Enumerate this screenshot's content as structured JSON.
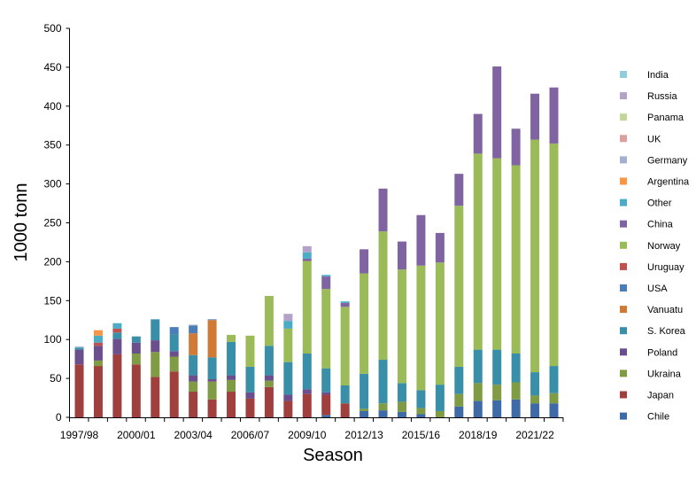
{
  "chart_data": {
    "type": "bar",
    "stacked": true,
    "title": "",
    "xlabel": "Season",
    "ylabel": "1000 tonn",
    "ylim": [
      0,
      500
    ],
    "yticks": [
      0,
      50,
      100,
      150,
      200,
      250,
      300,
      350,
      400,
      450,
      500
    ],
    "grid": false,
    "legend_position": "right",
    "categories": [
      "1997/98",
      "1998/99",
      "1999/00",
      "2000/01",
      "2001/02",
      "2002/03",
      "2003/04",
      "2004/05",
      "2005/06",
      "2006/07",
      "2007/08",
      "2008/09",
      "2009/10",
      "2010/11",
      "2011/12",
      "2012/13",
      "2013/14",
      "2014/15",
      "2015/16",
      "2016/17",
      "2017/18",
      "2018/19",
      "2019/20",
      "2020/21",
      "2021/22",
      "2022/23"
    ],
    "xtick_labels": [
      "1997/98",
      "",
      "",
      "2000/01",
      "",
      "",
      "2003/04",
      "",
      "",
      "2006/07",
      "",
      "",
      "2009/10",
      "",
      "",
      "2012/13",
      "",
      "",
      "2015/16",
      "",
      "",
      "2018/19",
      "",
      "",
      "2021/22",
      ""
    ],
    "series": [
      {
        "name": "Chile",
        "color": "#3F6AA8",
        "values": [
          0,
          0,
          0,
          0,
          0,
          0,
          0,
          0,
          0,
          0,
          0,
          0,
          0,
          3,
          0,
          8,
          9,
          7,
          4,
          0,
          14,
          21,
          22,
          23,
          18,
          18
        ]
      },
      {
        "name": "Japan",
        "color": "#A0403E",
        "values": [
          68,
          66,
          81,
          68,
          52,
          59,
          33,
          23,
          33,
          24,
          39,
          21,
          30,
          26,
          18,
          0,
          0,
          0,
          0,
          0,
          0,
          0,
          0,
          0,
          0,
          0
        ]
      },
      {
        "name": "Ukraina",
        "color": "#7F9B44",
        "values": [
          0,
          7,
          0,
          14,
          32,
          19,
          13,
          23,
          15,
          0,
          8,
          0,
          0,
          0,
          0,
          3,
          9,
          13,
          8,
          8,
          16,
          23,
          20,
          22,
          10,
          13
        ]
      },
      {
        "name": "Poland",
        "color": "#6B4F8C",
        "values": [
          19,
          19,
          20,
          14,
          15,
          7,
          8,
          3,
          6,
          8,
          7,
          8,
          6,
          3,
          0,
          0,
          0,
          0,
          0,
          0,
          0,
          0,
          0,
          0,
          0,
          0
        ]
      },
      {
        "name": "S. Korea",
        "color": "#3A8FA8",
        "values": [
          2,
          0,
          8,
          8,
          27,
          22,
          26,
          28,
          43,
          33,
          38,
          42,
          46,
          31,
          23,
          45,
          56,
          24,
          23,
          34,
          35,
          43,
          45,
          37,
          30,
          35
        ]
      },
      {
        "name": "Vanuatu",
        "color": "#D07A35",
        "values": [
          0,
          0,
          0,
          0,
          0,
          0,
          28,
          48,
          0,
          0,
          0,
          0,
          0,
          0,
          0,
          0,
          0,
          0,
          0,
          0,
          0,
          0,
          0,
          0,
          0,
          0
        ]
      },
      {
        "name": "USA",
        "color": "#4B7DB8",
        "values": [
          0,
          0,
          0,
          0,
          0,
          9,
          10,
          1,
          0,
          0,
          0,
          0,
          0,
          0,
          0,
          0,
          0,
          0,
          0,
          0,
          0,
          0,
          0,
          0,
          0,
          0
        ]
      },
      {
        "name": "Uruguay",
        "color": "#C0504D",
        "values": [
          0,
          4,
          5,
          0,
          0,
          0,
          0,
          0,
          0,
          0,
          0,
          0,
          0,
          0,
          0,
          0,
          0,
          0,
          0,
          0,
          0,
          0,
          0,
          0,
          0,
          0
        ]
      },
      {
        "name": "Norway",
        "color": "#9BBB59",
        "values": [
          0,
          0,
          0,
          0,
          0,
          0,
          0,
          0,
          9,
          40,
          64,
          43,
          119,
          102,
          101,
          129,
          165,
          146,
          160,
          157,
          207,
          252,
          246,
          242,
          299,
          286
        ]
      },
      {
        "name": "China",
        "color": "#8064A2",
        "values": [
          0,
          0,
          0,
          0,
          0,
          0,
          0,
          0,
          0,
          0,
          0,
          0,
          3,
          16,
          5,
          31,
          55,
          36,
          65,
          38,
          41,
          51,
          118,
          47,
          59,
          72
        ]
      },
      {
        "name": "Other",
        "color": "#4BACC6",
        "values": [
          1,
          9,
          7,
          0,
          0,
          0,
          0,
          0,
          0,
          0,
          0,
          10,
          8,
          2,
          2,
          0,
          0,
          0,
          0,
          0,
          0,
          0,
          0,
          0,
          0,
          0
        ]
      },
      {
        "name": "Argentina",
        "color": "#F79646",
        "values": [
          0,
          7,
          0,
          0,
          0,
          0,
          0,
          0,
          0,
          0,
          0,
          0,
          0,
          0,
          0,
          0,
          0,
          0,
          0,
          0,
          0,
          0,
          0,
          0,
          0,
          0
        ]
      },
      {
        "name": "Germany",
        "color": "#A5B0D0",
        "values": [
          1,
          0,
          0,
          0,
          0,
          0,
          1,
          0,
          0,
          0,
          0,
          0,
          0,
          0,
          0,
          0,
          0,
          0,
          0,
          0,
          0,
          0,
          0,
          0,
          0,
          0
        ]
      },
      {
        "name": "UK",
        "color": "#D9A0A0",
        "values": [
          0,
          0,
          0,
          0,
          0,
          0,
          0,
          0,
          0,
          0,
          0,
          0,
          0,
          0,
          0,
          0,
          0,
          0,
          0,
          0,
          0,
          0,
          0,
          0,
          0,
          0
        ]
      },
      {
        "name": "Panama",
        "color": "#C3D69B",
        "values": [
          0,
          0,
          0,
          0,
          0,
          0,
          0,
          0,
          0,
          0,
          0,
          0,
          0,
          0,
          0,
          0,
          0,
          0,
          0,
          0,
          0,
          0,
          0,
          0,
          0,
          0
        ]
      },
      {
        "name": "Russia",
        "color": "#B3A2C7",
        "values": [
          0,
          0,
          0,
          0,
          0,
          0,
          0,
          0,
          0,
          0,
          0,
          9,
          8,
          0,
          0,
          0,
          0,
          0,
          0,
          0,
          0,
          0,
          0,
          0,
          0,
          0
        ]
      },
      {
        "name": "India",
        "color": "#93CDDD",
        "values": [
          0,
          0,
          0,
          0,
          0,
          0,
          0,
          0,
          0,
          0,
          0,
          0,
          0,
          0,
          0,
          0,
          0,
          0,
          0,
          0,
          0,
          0,
          0,
          0,
          0,
          0
        ]
      }
    ]
  }
}
